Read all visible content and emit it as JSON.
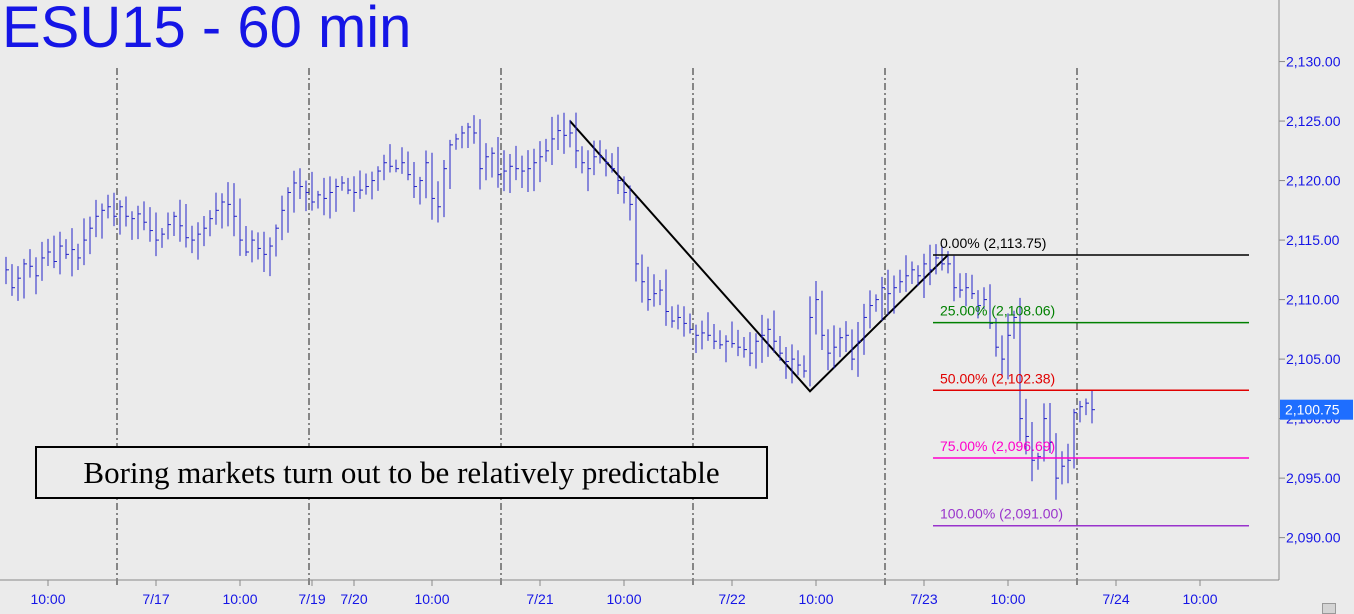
{
  "chart_data": {
    "type": "ohlc",
    "title": "ESU15 - 60 min",
    "annotation": "Boring markets turn out to be relatively predictable",
    "y_range": [
      2085.6,
      2134.5
    ],
    "y_ticks": [
      "2,090.00",
      "2,095.00",
      "2,100.00",
      "2,105.00",
      "2,110.00",
      "2,115.00",
      "2,120.00",
      "2,125.00",
      "2,130.00"
    ],
    "y_tick_values": [
      2090,
      2095,
      2100,
      2105,
      2110,
      2115,
      2120,
      2125,
      2130
    ],
    "x_range": [
      0,
      212
    ],
    "x_ticks": [
      {
        "label": "10:00",
        "bar": 7
      },
      {
        "label": "7/17",
        "bar": 25
      },
      {
        "label": "10:00",
        "bar": 39
      },
      {
        "label": "7/19",
        "bar": 51
      },
      {
        "label": "7/20",
        "bar": 58
      },
      {
        "label": "10:00",
        "bar": 71
      },
      {
        "label": "7/21",
        "bar": 89
      },
      {
        "label": "10:00",
        "bar": 103
      },
      {
        "label": "7/22",
        "bar": 121
      },
      {
        "label": "10:00",
        "bar": 135
      },
      {
        "label": "7/23",
        "bar": 153
      },
      {
        "label": "10:00",
        "bar": 167
      },
      {
        "label": "7/24",
        "bar": 185
      },
      {
        "label": "10:00",
        "bar": 199
      }
    ],
    "session_lines": [
      18.5,
      50.5,
      82.5,
      114.5,
      146.5,
      178.5
    ],
    "current_price": {
      "label": "2,100.75",
      "value": 2100.75
    },
    "trendline": [
      {
        "bar": 94,
        "value": 2125.0
      },
      {
        "bar": 134,
        "value": 2102.3
      },
      {
        "bar": 157,
        "value": 2113.75
      }
    ],
    "fib_levels": [
      {
        "label": "0.00% (2,113.75)",
        "value": 2113.75,
        "color": "#000000"
      },
      {
        "label": "25.00% (2,108.06)",
        "value": 2108.06,
        "color": "#008000"
      },
      {
        "label": "50.00% (2,102.38)",
        "value": 2102.38,
        "color": "#e00000"
      },
      {
        "label": "75.00% (2,096.69)",
        "value": 2096.69,
        "color": "#ff00cc"
      },
      {
        "label": "100.00% (2,091.00)",
        "value": 2091.0,
        "color": "#9933cc"
      }
    ],
    "fib_start_bar": 157,
    "closes": [
      2112.5,
      2111.0,
      2111.8,
      2113.0,
      2112.8,
      2112.0,
      2113.5,
      2114.0,
      2113.2,
      2114.5,
      2113.8,
      2114.2,
      2113.5,
      2115.0,
      2116.0,
      2117.0,
      2117.5,
      2117.8,
      2117.0,
      2117.8,
      2117.0,
      2116.8,
      2117.2,
      2116.5,
      2115.8,
      2115.0,
      2115.5,
      2116.3,
      2117.0,
      2116.2,
      2115.2,
      2115.0,
      2115.5,
      2116.0,
      2116.8,
      2117.5,
      2118.2,
      2118.0,
      2117.0,
      2115.0,
      2114.0,
      2115.0,
      2114.3,
      2113.8,
      2114.5,
      2116.0,
      2117.5,
      2119.0,
      2119.8,
      2119.5,
      2119.0,
      2118.2,
      2118.8,
      2118.5,
      2119.0,
      2119.5,
      2119.8,
      2119.2,
      2119.0,
      2119.2,
      2119.5,
      2120.0,
      2120.8,
      2121.5,
      2121.2,
      2121.0,
      2121.5,
      2120.5,
      2119.5,
      2120.0,
      2121.5,
      2118.5,
      2117.8,
      2121.0,
      2123.0,
      2123.5,
      2124.0,
      2124.5,
      2124.0,
      2121.0,
      2122.0,
      2122.3,
      2120.5,
      2120.8,
      2121.2,
      2121.0,
      2120.8,
      2121.0,
      2121.5,
      2122.0,
      2122.5,
      2123.5,
      2124.2,
      2123.8,
      2124.0,
      2122.5,
      2121.5,
      2121.0,
      2122.0,
      2122.0,
      2121.5,
      2121.0,
      2120.0,
      2119.0,
      2118.0,
      2113.0,
      2111.5,
      2110.0,
      2110.5,
      2110.8,
      2109.0,
      2108.2,
      2108.5,
      2108.0,
      2107.5,
      2107.0,
      2107.2,
      2107.0,
      2106.5,
      2106.2,
      2106.5,
      2106.3,
      2106.0,
      2105.8,
      2105.5,
      2106.5,
      2107.0,
      2107.5,
      2106.5,
      2105.5,
      2104.8,
      2105.0,
      2104.5,
      2104.0,
      2108.5,
      2110.0,
      2107.0,
      2105.5,
      2106.0,
      2106.8,
      2107.0,
      2105.0,
      2106.5,
      2108.5,
      2109.5,
      2110.0,
      2111.0,
      2110.5,
      2111.0,
      2111.5,
      2112.0,
      2112.5,
      2112.0,
      2113.0,
      2112.5,
      2113.5,
      2113.0,
      2113.0,
      2111.0,
      2110.8,
      2111.0,
      2110.5,
      2109.5,
      2110.0,
      2108.0,
      2106.0,
      2105.0,
      2107.0,
      2108.5,
      2100.0,
      2098.5,
      2096.5,
      2096.8,
      2100.0,
      2098.0,
      2095.0,
      2096.0,
      2096.5,
      2100.5,
      2101.0,
      2101.3,
      2100.75
    ]
  }
}
